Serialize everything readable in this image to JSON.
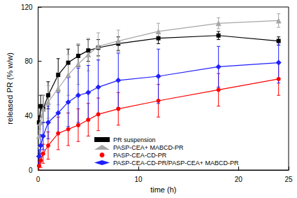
{
  "chart_data": {
    "type": "line",
    "x_label": "time (h)",
    "y_label": "released PR (% w/w)",
    "xlim": [
      0,
      25
    ],
    "xticks": [
      0,
      10,
      20
    ],
    "ylim": [
      0,
      120
    ],
    "yticks": [
      0,
      40,
      80,
      120
    ],
    "grid": false,
    "legend": "bottom right",
    "series": [
      {
        "name": "PR suspension",
        "color": "#000000",
        "marker": "square",
        "line_style": "solid",
        "x": [
          0.083,
          0.25,
          0.5,
          1,
          2,
          3,
          4,
          5,
          6,
          8,
          12,
          18,
          24
        ],
        "values": [
          35,
          47,
          45,
          55,
          70,
          79,
          84,
          88,
          90,
          93,
          97,
          99,
          95
        ],
        "errors": [
          5,
          8,
          10,
          10,
          12,
          10,
          8,
          8,
          6,
          5,
          4,
          3,
          3
        ]
      },
      {
        "name": "PASP-CEA+ MABCD-PR",
        "color": "#a6a6a6",
        "marker": "triangle",
        "line_style": "solid",
        "x": [
          0.083,
          0.25,
          0.5,
          1,
          2,
          3,
          4,
          5,
          6,
          8,
          12,
          18,
          24
        ],
        "values": [
          25,
          35,
          45,
          50,
          60,
          70,
          78,
          85,
          91,
          95,
          102,
          108,
          110
        ],
        "errors": [
          8,
          10,
          10,
          12,
          12,
          15,
          15,
          12,
          10,
          8,
          6,
          4,
          5
        ]
      },
      {
        "name": "PASP-CEA-CD-PR",
        "color": "#ff0000",
        "marker": "circle",
        "line_style": "solid",
        "x": [
          0.083,
          0.25,
          0.5,
          1,
          2,
          3,
          4,
          5,
          6,
          8,
          12,
          18,
          24
        ],
        "values": [
          3,
          7,
          12,
          18,
          27,
          30,
          33,
          37,
          41,
          45,
          51,
          59,
          67
        ],
        "errors": [
          3,
          5,
          7,
          10,
          12,
          12,
          12,
          12,
          12,
          12,
          12,
          12,
          12
        ]
      },
      {
        "name": "PASP-CEA-CD-PR/PASP-CEA+ MABCD-PR",
        "color": "#1f1fff",
        "marker": "diamond",
        "line_style": "solid",
        "x": [
          0.083,
          0.25,
          0.5,
          1,
          2,
          3,
          4,
          5,
          6,
          8,
          12,
          18,
          24
        ],
        "values": [
          10,
          18,
          25,
          35,
          42,
          50,
          55,
          57,
          61,
          66,
          69,
          76,
          79
        ],
        "errors": [
          5,
          8,
          10,
          12,
          15,
          18,
          20,
          20,
          20,
          20,
          20,
          15,
          15
        ]
      }
    ]
  }
}
